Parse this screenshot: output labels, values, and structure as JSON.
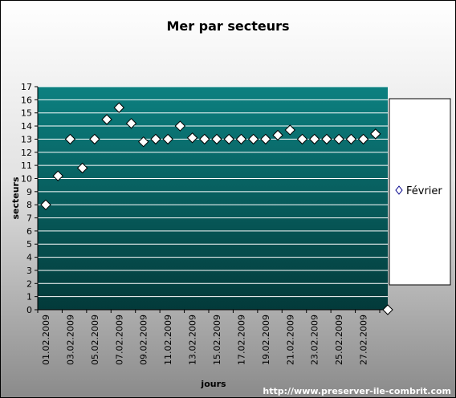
{
  "chart_data": {
    "type": "scatter",
    "title": "Mer par secteurs",
    "xlabel": "jours",
    "ylabel": "secteurs",
    "ylim": [
      0,
      17
    ],
    "yticks": [
      0,
      1,
      2,
      3,
      4,
      5,
      6,
      7,
      8,
      9,
      10,
      11,
      12,
      13,
      14,
      15,
      16,
      17
    ],
    "grid": true,
    "legend_position": "right",
    "x_tick_labels": [
      "01.02.2009",
      "03.02.2009",
      "05.02.2009",
      "07.02.2009",
      "09.02.2009",
      "11.02.2009",
      "13.02.2009",
      "15.02.2009",
      "17.02.2009",
      "19.02.2009",
      "21.02.2009",
      "23.02.2009",
      "25.02.2009",
      "27.02.2009"
    ],
    "categories": [
      "01.02.2009",
      "02.02.2009",
      "03.02.2009",
      "04.02.2009",
      "05.02.2009",
      "06.02.2009",
      "07.02.2009",
      "08.02.2009",
      "09.02.2009",
      "10.02.2009",
      "11.02.2009",
      "12.02.2009",
      "13.02.2009",
      "14.02.2009",
      "15.02.2009",
      "16.02.2009",
      "17.02.2009",
      "18.02.2009",
      "19.02.2009",
      "20.02.2009",
      "21.02.2009",
      "22.02.2009",
      "23.02.2009",
      "24.02.2009",
      "25.02.2009",
      "26.02.2009",
      "27.02.2009",
      "28.02.2009",
      "01.03.2009"
    ],
    "series": [
      {
        "name": "Février",
        "values": [
          8,
          10.2,
          13,
          10.8,
          13,
          14.5,
          15.4,
          14.2,
          12.8,
          13,
          13,
          14,
          13.1,
          13,
          13,
          13,
          13,
          13,
          13,
          13.3,
          13.7,
          13,
          13,
          13,
          13,
          13,
          13,
          13.4,
          0
        ]
      }
    ],
    "colors": {
      "plot_top": "#0c8080",
      "plot_bottom": "#033a3a",
      "marker_fill": "#ffffff",
      "marker_stroke": "#000000",
      "legend_marker": "#00008b"
    }
  },
  "footer": {
    "url": "http://www.preserver-ile-combrit.com"
  }
}
